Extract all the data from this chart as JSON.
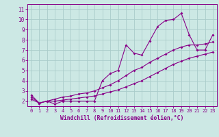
{
  "xlabel": "Windchill (Refroidissement éolien,°C)",
  "bg_color": "#cce8e4",
  "grid_color": "#aaccca",
  "line_color": "#880088",
  "x_data": [
    0,
    1,
    2,
    3,
    4,
    5,
    6,
    7,
    8,
    9,
    10,
    11,
    12,
    13,
    14,
    15,
    16,
    17,
    18,
    19,
    20,
    21,
    22,
    23
  ],
  "line1_y": [
    2.6,
    1.8,
    2.0,
    1.7,
    2.0,
    2.0,
    2.0,
    2.0,
    2.0,
    4.0,
    4.7,
    5.0,
    7.5,
    6.7,
    6.5,
    7.9,
    9.3,
    9.9,
    10.0,
    10.6,
    8.5,
    7.0,
    7.0,
    8.5
  ],
  "line2_y": [
    2.4,
    1.8,
    2.0,
    2.2,
    2.4,
    2.5,
    2.7,
    2.8,
    3.0,
    3.3,
    3.6,
    4.0,
    4.5,
    5.0,
    5.3,
    5.8,
    6.2,
    6.6,
    7.0,
    7.3,
    7.5,
    7.5,
    7.6,
    7.8
  ],
  "line3_y": [
    2.2,
    1.8,
    2.0,
    2.0,
    2.1,
    2.2,
    2.3,
    2.4,
    2.5,
    2.7,
    2.9,
    3.1,
    3.4,
    3.7,
    4.0,
    4.4,
    4.8,
    5.2,
    5.6,
    5.9,
    6.2,
    6.4,
    6.6,
    6.8
  ],
  "xlim": [
    -0.5,
    23.5
  ],
  "ylim": [
    1.5,
    11.5
  ],
  "yticks": [
    2,
    3,
    4,
    5,
    6,
    7,
    8,
    9,
    10,
    11
  ],
  "xticks": [
    0,
    1,
    2,
    3,
    4,
    5,
    6,
    7,
    8,
    9,
    10,
    11,
    12,
    13,
    14,
    15,
    16,
    17,
    18,
    19,
    20,
    21,
    22,
    23
  ]
}
